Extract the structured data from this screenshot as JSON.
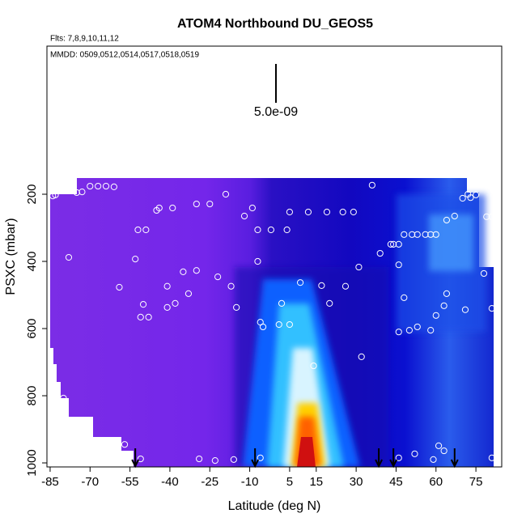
{
  "chart_data": {
    "type": "scatter",
    "title": "ATOM4 Northbound DU_GEOS5",
    "flights": "Flts: 7,8,9,10,11,12",
    "dates": "MMDD: 0509,0512,0514,0517,0518,0519",
    "scale_label": "5.0e-09",
    "x_label": "Latitude (deg N)",
    "y_label": "PSXC (mbar)",
    "xlim": [
      -86.2,
      84.7
    ],
    "ylim": [
      1012,
      -241
    ],
    "xticks": [
      -85,
      -70,
      -55,
      -40,
      -25,
      -10,
      5,
      15,
      30,
      45,
      60,
      75
    ],
    "yticks": [
      200,
      400,
      600,
      800,
      1000
    ],
    "color": "#ffffff",
    "x": [
      -84,
      -83,
      -75,
      -73,
      -70,
      -67,
      -64,
      -61,
      -19,
      -30,
      -25,
      -44,
      -45,
      -39,
      -12,
      -9,
      5,
      12,
      19,
      25,
      29,
      36,
      -52,
      -49,
      -7,
      -2,
      4,
      -78,
      -53,
      -7,
      -35,
      -30,
      -22,
      -59,
      31,
      39,
      43,
      44,
      46,
      48,
      51,
      53,
      56,
      58,
      60,
      64,
      67,
      70,
      72,
      73,
      75,
      79,
      81,
      46,
      78,
      9,
      17,
      26,
      -17,
      -41,
      -41,
      -50,
      -51,
      -48,
      -38,
      -33,
      -15,
      2,
      20,
      48,
      64,
      63,
      71,
      81,
      60,
      -6,
      -5,
      1,
      5,
      46,
      50,
      53,
      58,
      32,
      14,
      -80,
      -57,
      -51,
      -29,
      -23,
      -16,
      -6,
      52,
      46,
      59,
      61,
      63,
      81
    ],
    "values": [
      205,
      202,
      195,
      193,
      176,
      176,
      176,
      178,
      200,
      229,
      229,
      241,
      248,
      241,
      265,
      241,
      253,
      253,
      253,
      253,
      253,
      173,
      306,
      306,
      306,
      306,
      306,
      388,
      393,
      400,
      431,
      427,
      446,
      477,
      417,
      376,
      349,
      349,
      349,
      320,
      320,
      320,
      320,
      320,
      320,
      277,
      265,
      212,
      200,
      210,
      202,
      267,
      267,
      410,
      436,
      463,
      472,
      474,
      474,
      474,
      537,
      528,
      566,
      566,
      525,
      496,
      537,
      525,
      525,
      508,
      496,
      532,
      544,
      540,
      561,
      581,
      595,
      588,
      588,
      610,
      605,
      595,
      605,
      684,
      711,
      807,
      945,
      988,
      988,
      993,
      990,
      985,
      973,
      985,
      990,
      949,
      964,
      985
    ],
    "flight_markers": [
      -53,
      -8,
      38.5,
      44,
      67
    ]
  }
}
